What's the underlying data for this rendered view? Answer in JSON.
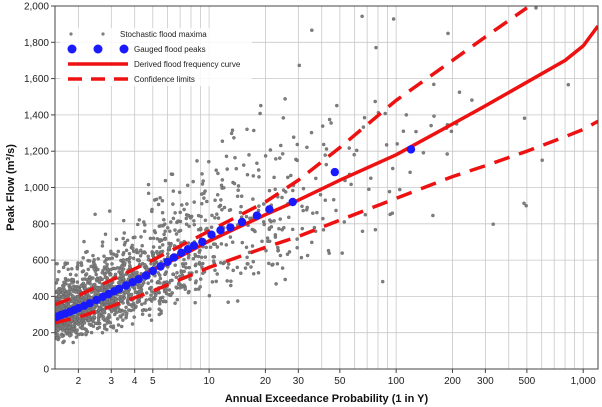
{
  "chart_data": {
    "type": "scatter",
    "xlabel": "Annual Exceedance Probability (1 in Y)",
    "ylabel": "Peak Flow (m³/s)",
    "x_scale": "log",
    "xlim": [
      1.5,
      1200
    ],
    "ylim": [
      0,
      2000
    ],
    "grid": true,
    "legend_position": "top-left",
    "x_ticks": [
      {
        "value": 2,
        "label": "2"
      },
      {
        "value": 3,
        "label": "3"
      },
      {
        "value": 4,
        "label": "4"
      },
      {
        "value": 5,
        "label": "5"
      },
      {
        "value": 10,
        "label": "10"
      },
      {
        "value": 20,
        "label": "20"
      },
      {
        "value": 30,
        "label": "30"
      },
      {
        "value": 50,
        "label": "50"
      },
      {
        "value": 100,
        "label": "100"
      },
      {
        "value": 200,
        "label": "200"
      },
      {
        "value": 300,
        "label": "300"
      },
      {
        "value": 500,
        "label": "500"
      },
      {
        "value": 1000,
        "label": "1,000"
      }
    ],
    "y_ticks": [
      {
        "value": 0,
        "label": "0"
      },
      {
        "value": 200,
        "label": "200"
      },
      {
        "value": 400,
        "label": "400"
      },
      {
        "value": 600,
        "label": "600"
      },
      {
        "value": 800,
        "label": "800"
      },
      {
        "value": 1000,
        "label": "1,000"
      },
      {
        "value": 1200,
        "label": "1,200"
      },
      {
        "value": 1400,
        "label": "1,400"
      },
      {
        "value": 1600,
        "label": "1,600"
      },
      {
        "value": 1800,
        "label": "1,800"
      },
      {
        "value": 2000,
        "label": "2,000"
      }
    ],
    "series": [
      {
        "name": "Stochastic flood maxima",
        "kind": "scatter-cloud",
        "color": "#7f7f7f",
        "approx_count": 2500,
        "note_median_follows": "Derived flood frequency curve"
      },
      {
        "name": "Gauged flood peaks",
        "kind": "points",
        "color": "#1a1aff",
        "points": [
          [
            1.5,
            285
          ],
          [
            1.55,
            290
          ],
          [
            1.62,
            298
          ],
          [
            1.7,
            305
          ],
          [
            1.8,
            315
          ],
          [
            1.9,
            325
          ],
          [
            2.0,
            335
          ],
          [
            2.15,
            348
          ],
          [
            2.3,
            362
          ],
          [
            2.5,
            380
          ],
          [
            2.7,
            398
          ],
          [
            2.9,
            413
          ],
          [
            3.1,
            428
          ],
          [
            3.3,
            442
          ],
          [
            3.6,
            460
          ],
          [
            3.9,
            478
          ],
          [
            4.2,
            495
          ],
          [
            4.6,
            515
          ],
          [
            5.0,
            540
          ],
          [
            5.5,
            565
          ],
          [
            6.0,
            590
          ],
          [
            6.5,
            615
          ],
          [
            7.1,
            640
          ],
          [
            7.7,
            660
          ],
          [
            8.3,
            680
          ],
          [
            9.2,
            700
          ],
          [
            10.3,
            740
          ],
          [
            11.5,
            765
          ],
          [
            13.0,
            780
          ],
          [
            15.0,
            810
          ],
          [
            18.0,
            845
          ],
          [
            21.0,
            880
          ],
          [
            28.0,
            920
          ],
          [
            47.0,
            1085
          ],
          [
            120.0,
            1210
          ]
        ]
      },
      {
        "name": "Derived flood frequency curve",
        "kind": "line",
        "color": "#ee1111",
        "x": [
          1.5,
          2,
          3,
          4,
          5,
          7,
          10,
          15,
          20,
          30,
          50,
          100,
          200,
          300,
          500,
          800,
          1000,
          1200
        ],
        "y": [
          290,
          340,
          420,
          490,
          545,
          620,
          705,
          790,
          850,
          930,
          1040,
          1180,
          1350,
          1450,
          1580,
          1700,
          1780,
          1890
        ]
      },
      {
        "name": "Confidence limits",
        "kind": "dashed-lines",
        "color": "#ee1111",
        "upper": {
          "x": [
            1.5,
            2,
            3,
            5,
            10,
            20,
            30,
            50,
            100,
            200,
            300,
            500
          ],
          "y": [
            355,
            405,
            490,
            600,
            760,
            920,
            1040,
            1220,
            1480,
            1700,
            1830,
            1990
          ]
        },
        "lower": {
          "x": [
            1.5,
            2,
            3,
            5,
            10,
            20,
            30,
            50,
            100,
            200,
            300,
            500,
            800,
            1000,
            1200
          ],
          "y": [
            255,
            285,
            345,
            430,
            560,
            670,
            730,
            820,
            940,
            1060,
            1120,
            1200,
            1280,
            1320,
            1365
          ]
        }
      }
    ]
  }
}
